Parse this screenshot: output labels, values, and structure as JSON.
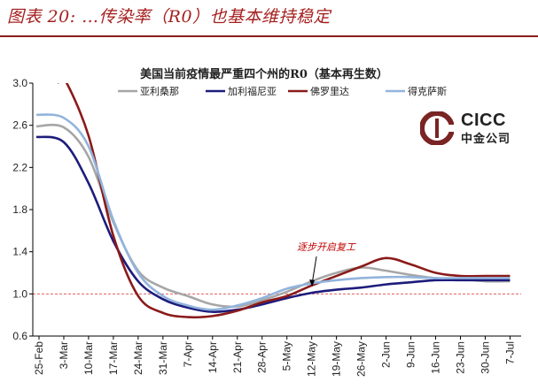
{
  "caption": "图表 20: …传染率（R0）也基本维持稳定",
  "logo": {
    "mark": "cicc-logo-icon",
    "line1": "CICC",
    "line2": "中金公司"
  },
  "chart_data": {
    "type": "line",
    "title": "美国当前疫情最严重四个州的R0（基本再生数）",
    "xlabel": "",
    "ylabel": "",
    "ylim": [
      0.6,
      3.0
    ],
    "yticks": [
      "0.6",
      "1.0",
      "1.4",
      "1.8",
      "2.2",
      "2.6",
      "3.0"
    ],
    "categories": [
      "25-Feb",
      "3-Mar",
      "10-Mar",
      "17-Mar",
      "24-Mar",
      "31-Mar",
      "7-Apr",
      "14-Apr",
      "21-Apr",
      "28-Apr",
      "5-May",
      "12-May",
      "19-May",
      "26-May",
      "2-Jun",
      "9-Jun",
      "16-Jun",
      "23-Jun",
      "30-Jun",
      "7-Jul"
    ],
    "reference_line": {
      "value": 1.0,
      "color": "#e06060"
    },
    "annotation": {
      "text": "逐步开启复工",
      "x_index": 11.3,
      "y": 1.07
    },
    "series": [
      {
        "name": "亚利桑那",
        "color": "#a6a6a6",
        "values": [
          2.59,
          2.58,
          2.3,
          1.68,
          1.22,
          1.06,
          0.98,
          0.9,
          0.88,
          0.94,
          1.02,
          1.12,
          1.2,
          1.25,
          1.22,
          1.18,
          1.15,
          1.14,
          1.12,
          1.12
        ]
      },
      {
        "name": "加利福尼亚",
        "color": "#1c1c7c",
        "values": [
          2.49,
          2.44,
          2.05,
          1.5,
          1.12,
          0.95,
          0.87,
          0.83,
          0.85,
          0.9,
          0.96,
          1.01,
          1.04,
          1.06,
          1.09,
          1.11,
          1.13,
          1.13,
          1.13,
          1.13
        ]
      },
      {
        "name": "佛罗里达",
        "color": "#8b1a1a",
        "values": [
          null,
          3.05,
          2.5,
          1.55,
          0.98,
          0.82,
          0.78,
          0.79,
          0.84,
          0.92,
          0.98,
          1.08,
          1.17,
          1.26,
          1.34,
          1.28,
          1.2,
          1.17,
          1.17,
          1.17
        ]
      },
      {
        "name": "得克萨斯",
        "color": "#92b4dc",
        "values": [
          2.7,
          2.67,
          2.4,
          1.7,
          1.2,
          0.98,
          0.89,
          0.85,
          0.89,
          0.96,
          1.05,
          1.1,
          1.13,
          1.15,
          1.16,
          1.16,
          1.15,
          1.15,
          1.15,
          1.15
        ]
      }
    ]
  }
}
